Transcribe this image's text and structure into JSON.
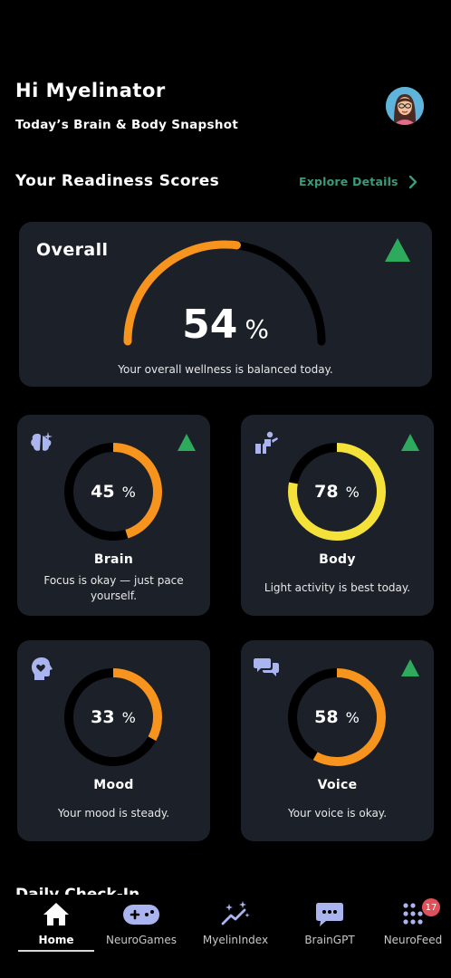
{
  "header": {
    "greeting": "Hi Myelinator",
    "subtitle": "Today’s Brain & Body Snapshot"
  },
  "readiness": {
    "title": "Your Readiness Scores",
    "explore_label": "Explore Details",
    "overall": {
      "label": "Overall",
      "value": "54",
      "unit": "%",
      "percent": 54,
      "trend": "up",
      "description": "Your overall wellness is balanced today."
    },
    "cards": [
      {
        "name": "Brain",
        "value": "45",
        "unit": "%",
        "percent": 45,
        "color": "#f7941d",
        "trend": "up",
        "icon": "brain-icon",
        "description": "Focus is okay — just pace yourself."
      },
      {
        "name": "Body",
        "value": "78",
        "unit": "%",
        "percent": 78,
        "color": "#f4e23a",
        "trend": "up",
        "icon": "body-activity-icon",
        "description": "Light activity is best today."
      },
      {
        "name": "Mood",
        "value": "33",
        "unit": "%",
        "percent": 33,
        "color": "#f7941d",
        "trend": "none",
        "icon": "mood-head-icon",
        "description": "Your mood is steady."
      },
      {
        "name": "Voice",
        "value": "58",
        "unit": "%",
        "percent": 58,
        "color": "#f7941d",
        "trend": "up",
        "icon": "voice-chat-icon",
        "description": "Your voice is okay."
      }
    ]
  },
  "next_section_peek": "Daily Check-In",
  "nav": {
    "items": [
      {
        "label": "Home",
        "icon": "home-icon",
        "active": true
      },
      {
        "label": "NeuroGames",
        "icon": "gamepad-icon",
        "active": false
      },
      {
        "label": "MyelinIndex",
        "icon": "sparkle-chart-icon",
        "active": false
      },
      {
        "label": "BrainGPT",
        "icon": "chat-bubble-icon",
        "active": false
      },
      {
        "label": "NeuroFeed",
        "icon": "grid-dots-icon",
        "active": false
      }
    ],
    "neurofeed_badge": "17"
  },
  "colors": {
    "card_bg": "#1b2029",
    "accent_green": "#3c9a7c",
    "trend_green": "#2eaa5c",
    "orange": "#f7941d",
    "yellow": "#f4e23a",
    "icon_purple": "#aab4ee"
  }
}
